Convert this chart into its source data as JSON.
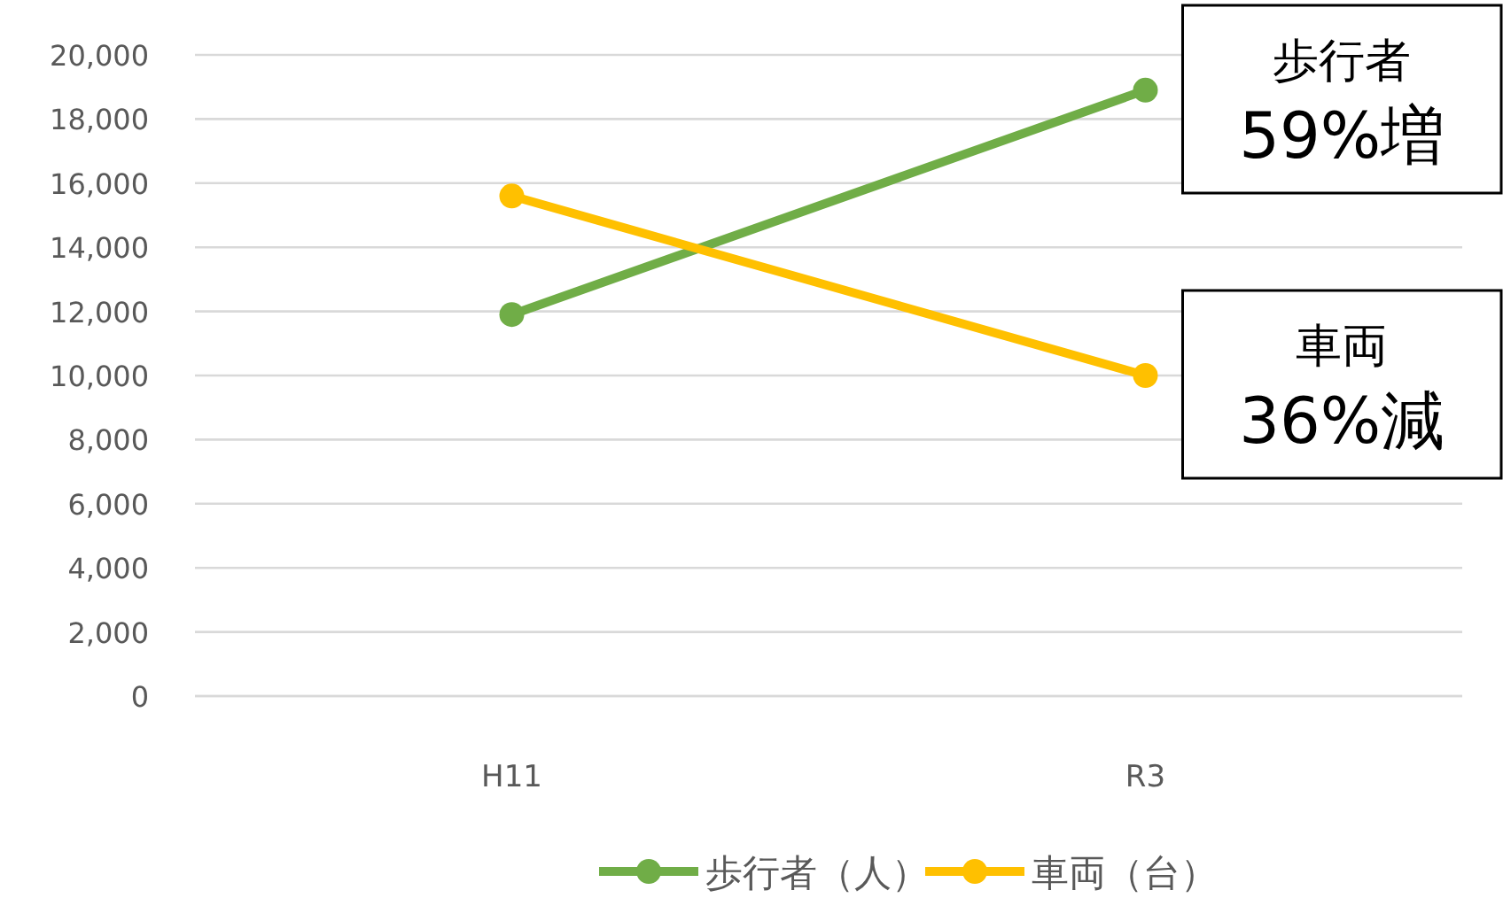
{
  "chart_data": {
    "type": "line",
    "categories": [
      "H11",
      "R3"
    ],
    "series": [
      {
        "name": "歩行者（人）",
        "color": "#70ad47",
        "values": [
          11900,
          18900
        ]
      },
      {
        "name": "車両（台）",
        "color": "#ffc000",
        "values": [
          15600,
          10000
        ]
      }
    ],
    "ylim": [
      0,
      20000
    ],
    "yticks": [
      {
        "value": 0,
        "label": "0"
      },
      {
        "value": 2000,
        "label": "2,000"
      },
      {
        "value": 4000,
        "label": "4,000"
      },
      {
        "value": 6000,
        "label": "6,000"
      },
      {
        "value": 8000,
        "label": "8,000"
      },
      {
        "value": 10000,
        "label": "10,000"
      },
      {
        "value": 12000,
        "label": "12,000"
      },
      {
        "value": 14000,
        "label": "14,000"
      },
      {
        "value": 16000,
        "label": "16,000"
      },
      {
        "value": 18000,
        "label": "18,000"
      },
      {
        "value": 20000,
        "label": "20,000"
      }
    ],
    "grid": "y",
    "legend": "bottom",
    "marker": "circle",
    "line_style": "solid",
    "annotations": [
      {
        "text": "歩行者 59%増",
        "x": "R3",
        "y": 18900
      },
      {
        "text": "車両 36%減",
        "x": "R3",
        "y": 10000
      }
    ]
  }
}
